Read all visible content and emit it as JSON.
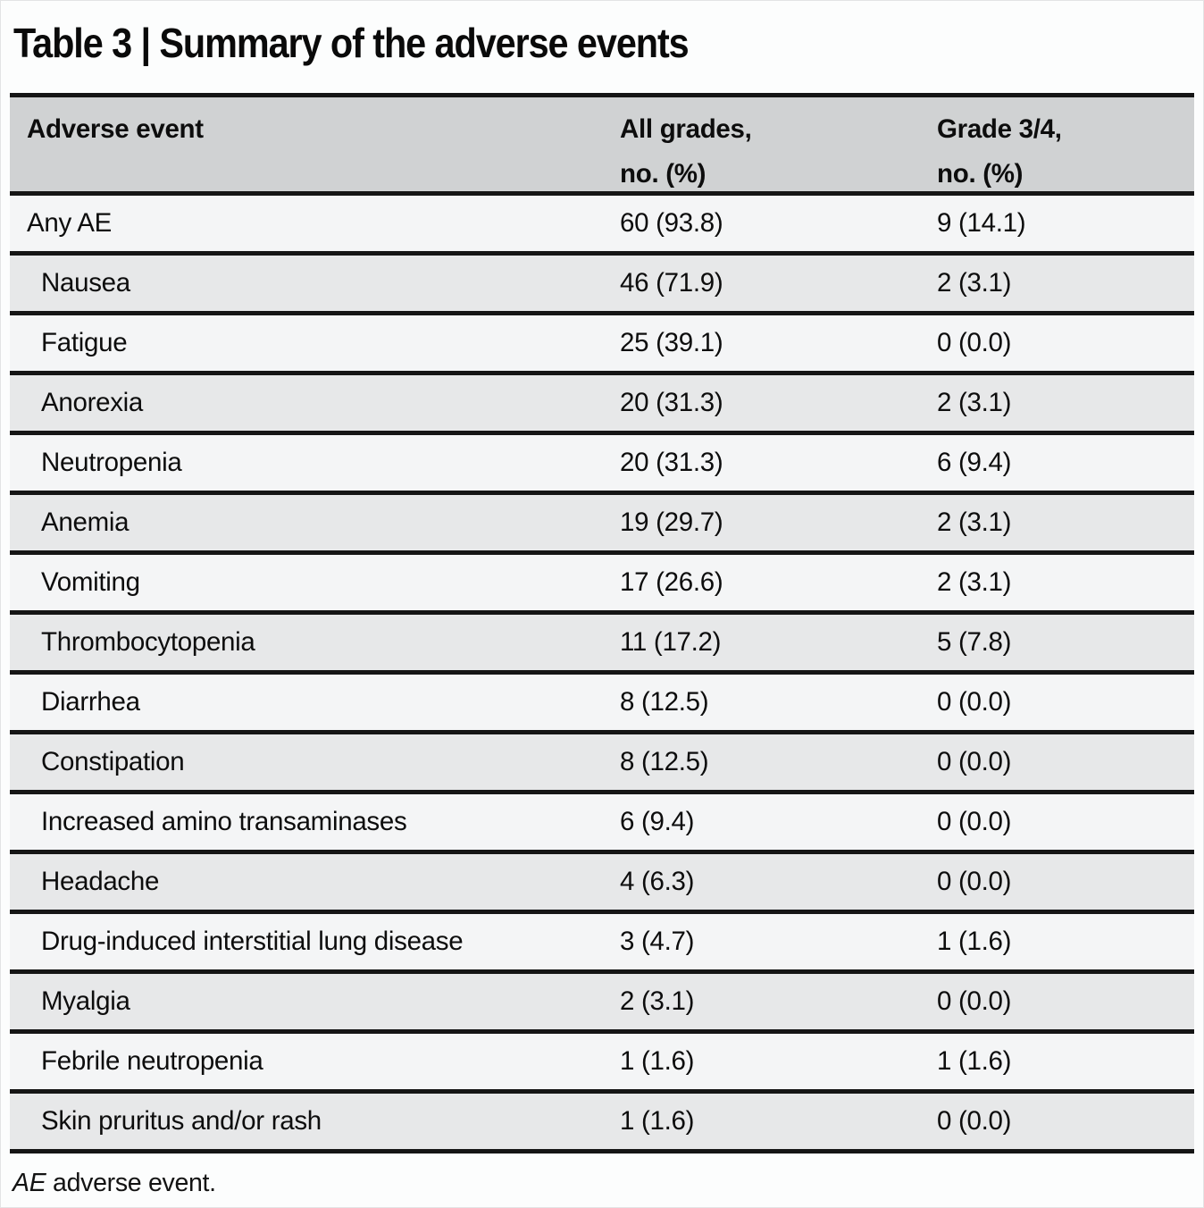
{
  "page": {
    "title": "Table 3 | Summary of the adverse events",
    "footnote": {
      "term": "AE",
      "text": "adverse event."
    }
  },
  "table": {
    "columns": [
      {
        "label": "Adverse event"
      },
      {
        "label": "All grades,\nno. (%)"
      },
      {
        "label": "Grade 3/4,\nno. (%)"
      }
    ],
    "rows": [
      {
        "label": "Any AE",
        "all_grades": "60 (93.8)",
        "grade_3_4": "9 (14.1)",
        "indent": false
      },
      {
        "label": "Nausea",
        "all_grades": "46 (71.9)",
        "grade_3_4": "2 (3.1)",
        "indent": true
      },
      {
        "label": "Fatigue",
        "all_grades": "25 (39.1)",
        "grade_3_4": "0 (0.0)",
        "indent": true
      },
      {
        "label": "Anorexia",
        "all_grades": "20 (31.3)",
        "grade_3_4": "2 (3.1)",
        "indent": true
      },
      {
        "label": "Neutropenia",
        "all_grades": "20 (31.3)",
        "grade_3_4": "6 (9.4)",
        "indent": true
      },
      {
        "label": "Anemia",
        "all_grades": "19 (29.7)",
        "grade_3_4": "2 (3.1)",
        "indent": true
      },
      {
        "label": "Vomiting",
        "all_grades": "17 (26.6)",
        "grade_3_4": "2 (3.1)",
        "indent": true
      },
      {
        "label": "Thrombocytopenia",
        "all_grades": "11 (17.2)",
        "grade_3_4": "5 (7.8)",
        "indent": true
      },
      {
        "label": "Diarrhea",
        "all_grades": "8 (12.5)",
        "grade_3_4": "0 (0.0)",
        "indent": true
      },
      {
        "label": "Constipation",
        "all_grades": "8 (12.5)",
        "grade_3_4": "0 (0.0)",
        "indent": true
      },
      {
        "label": "Increased amino transaminases",
        "all_grades": "6 (9.4)",
        "grade_3_4": "0 (0.0)",
        "indent": true
      },
      {
        "label": "Headache",
        "all_grades": "4 (6.3)",
        "grade_3_4": "0 (0.0)",
        "indent": true
      },
      {
        "label": "Drug-induced interstitial lung disease",
        "all_grades": "3 (4.7)",
        "grade_3_4": "1 (1.6)",
        "indent": true
      },
      {
        "label": "Myalgia",
        "all_grades": "2 (3.1)",
        "grade_3_4": "0 (0.0)",
        "indent": true
      },
      {
        "label": "Febrile neutropenia",
        "all_grades": "1 (1.6)",
        "grade_3_4": "1 (1.6)",
        "indent": true
      },
      {
        "label": "Skin pruritus and/or rash",
        "all_grades": "1 (1.6)",
        "grade_3_4": "0 (0.0)",
        "indent": true
      }
    ]
  },
  "colors": {
    "header_bg": "#d0d2d3",
    "row_light": "#f4f5f6",
    "row_dark": "#e7e8e9",
    "rule": "#151515"
  }
}
